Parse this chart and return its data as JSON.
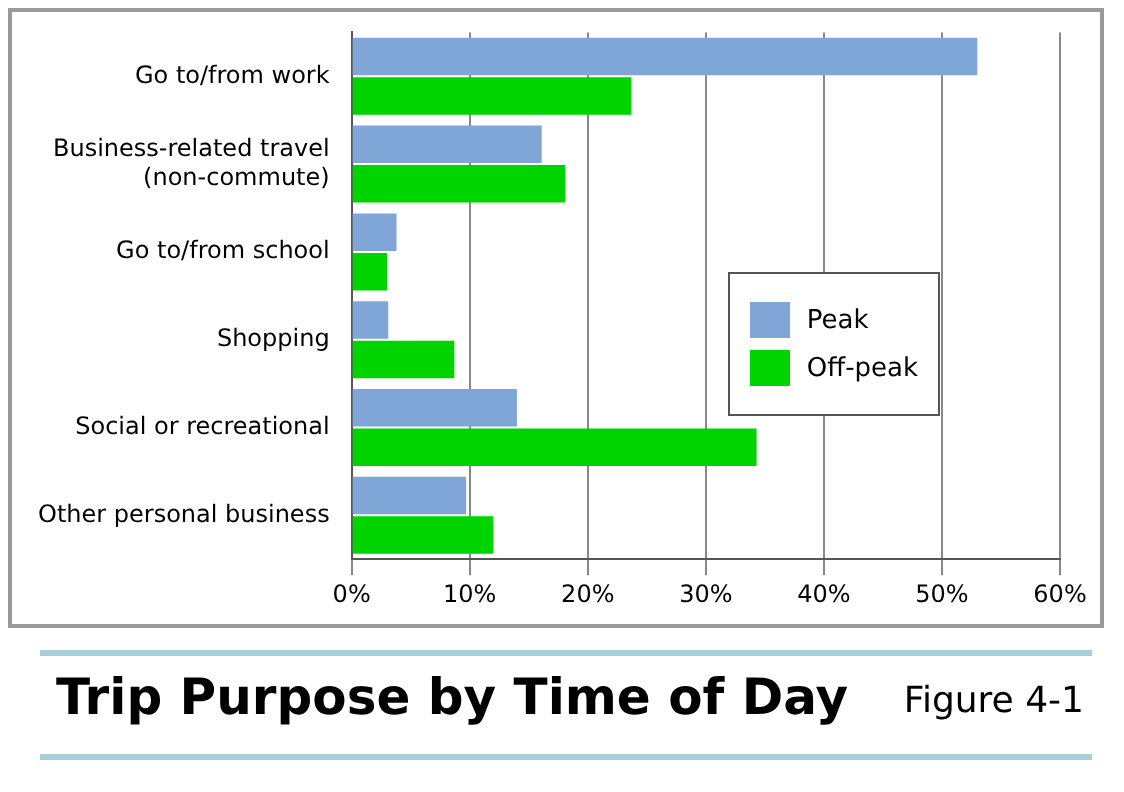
{
  "chart_data": {
    "type": "bar",
    "orientation": "horizontal",
    "title": "Trip Purpose by Time of Day",
    "annotations": [
      "Figure 4-1"
    ],
    "categories": [
      "Go to/from work",
      "Business-related travel\n(non-commute)",
      "Go to/from school",
      "Shopping",
      "Social or recreational",
      "Other personal business"
    ],
    "series": [
      {
        "name": "Peak",
        "color": "#7fa6d6",
        "values": [
          53,
          16.1,
          3.8,
          3.1,
          14.0,
          9.7
        ]
      },
      {
        "name": "Off-peak",
        "color": "#00d400",
        "values": [
          23.7,
          18.1,
          3.0,
          8.7,
          34.3,
          12.0
        ]
      }
    ],
    "xlim": [
      0,
      60
    ],
    "xticks": [
      {
        "value": 0,
        "label": "0%"
      },
      {
        "value": 10,
        "label": "10%"
      },
      {
        "value": 20,
        "label": "20%"
      },
      {
        "value": 30,
        "label": "30%"
      },
      {
        "value": 40,
        "label": "40%"
      },
      {
        "value": 50,
        "label": "50%"
      },
      {
        "value": 60,
        "label": "60%"
      }
    ],
    "grid": "x",
    "legend": "right"
  }
}
